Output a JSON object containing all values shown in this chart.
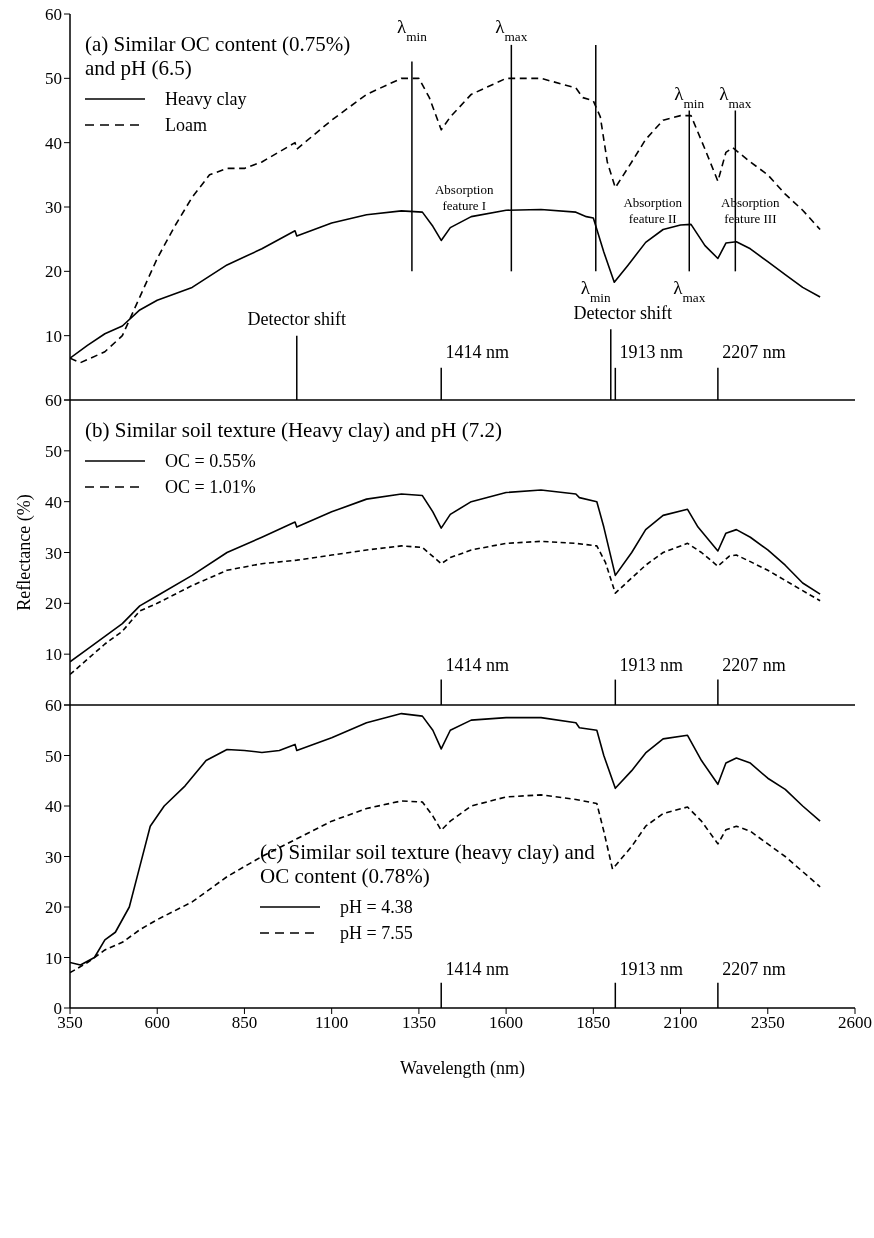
{
  "chart_data": [
    {
      "type": "line",
      "title": "(a) Similar OC content (0.75%) and pH (6.5)",
      "xlim": [
        350,
        2600
      ],
      "xticks": [
        350,
        600,
        850,
        1100,
        1350,
        1600,
        1850,
        2100,
        2350,
        2600
      ],
      "ylim": [
        0,
        60
      ],
      "yticks": [
        {
          "value": 0,
          "label": null
        },
        10,
        20,
        30,
        40,
        50,
        60
      ],
      "tick_labels": "y",
      "legend": "top left",
      "marker": "none",
      "series": [
        {
          "name": "Heavy clay",
          "color": "#000000",
          "line_style": "solid",
          "x": [
            350,
            400,
            450,
            500,
            550,
            600,
            700,
            800,
            900,
            995,
            1000,
            1100,
            1200,
            1300,
            1360,
            1390,
            1414,
            1440,
            1500,
            1600,
            1700,
            1800,
            1830,
            1850,
            1880,
            1910,
            1950,
            2000,
            2050,
            2100,
            2130,
            2170,
            2207,
            2230,
            2260,
            2300,
            2350,
            2400,
            2450,
            2500
          ],
          "values": [
            6.5,
            8.5,
            10.3,
            11.5,
            14,
            15.5,
            17.5,
            21,
            23.5,
            26.3,
            25.5,
            27.5,
            28.8,
            29.4,
            29.2,
            27,
            24.8,
            26.8,
            28.5,
            29.5,
            29.6,
            29.2,
            28.5,
            28.3,
            23,
            18.3,
            21,
            24.5,
            26.5,
            27.2,
            27.3,
            24,
            22,
            24.4,
            24.6,
            23.5,
            21.5,
            19.5,
            17.5,
            16
          ]
        },
        {
          "name": "Loam",
          "color": "#000000",
          "line_style": "dashed",
          "x": [
            350,
            380,
            450,
            500,
            550,
            600,
            650,
            700,
            750,
            800,
            850,
            900,
            995,
            1000,
            1100,
            1200,
            1300,
            1350,
            1380,
            1414,
            1440,
            1500,
            1600,
            1700,
            1800,
            1820,
            1850,
            1870,
            1890,
            1913,
            1960,
            2000,
            2050,
            2100,
            2130,
            2170,
            2207,
            2230,
            2250,
            2300,
            2350,
            2400,
            2450,
            2500
          ],
          "values": [
            6.5,
            5.8,
            7.5,
            10,
            16,
            22,
            27,
            31.5,
            35,
            36,
            36,
            37,
            40,
            39,
            43.5,
            47.5,
            50,
            50,
            47,
            42,
            44,
            47.5,
            50,
            50,
            48.5,
            47,
            46.5,
            44,
            37,
            33,
            37,
            40.5,
            43.5,
            44.2,
            44.2,
            39,
            34,
            38.5,
            39.2,
            37,
            35,
            32,
            29.5,
            26.5
          ]
        }
      ],
      "ref_lines": [
        {
          "axis": "x",
          "value": 1000,
          "label": "Detector shift"
        },
        {
          "axis": "x",
          "value": 1900,
          "label": "Detector shift"
        },
        {
          "axis": "x",
          "value": 1330,
          "label": null
        },
        {
          "axis": "x",
          "value": 1615,
          "label": null
        },
        {
          "axis": "x",
          "value": 1857,
          "label": null
        },
        {
          "axis": "x",
          "value": 2125,
          "label": null
        },
        {
          "axis": "x",
          "value": 2257,
          "label": null
        },
        {
          "axis": "x",
          "value": 1414,
          "label": "1414 nm"
        },
        {
          "axis": "x",
          "value": 1913,
          "label": "1913 nm"
        },
        {
          "axis": "x",
          "value": 2207,
          "label": "2207 nm"
        }
      ],
      "annotations": [
        "λ$_{min}$",
        "λ$_{max}$",
        "λ$_{min}$",
        "λ$_{min}$",
        "λ$_{max}$",
        "λ$_{max}$",
        "Absorption feature I",
        "Absorption feature II",
        "Absorption feature III"
      ]
    },
    {
      "type": "line",
      "title": "(b) Similar soil texture (Heavy clay) and pH (7.2)",
      "ylabel": "Reflectance (%)",
      "xlim": [
        350,
        2600
      ],
      "xticks": [
        350,
        600,
        850,
        1100,
        1350,
        1600,
        1850,
        2100,
        2350,
        2600
      ],
      "ylim": [
        0,
        60
      ],
      "yticks": [
        {
          "value": 0,
          "label": null
        },
        10,
        20,
        30,
        40,
        50,
        60
      ],
      "tick_labels": "y",
      "legend": "top left",
      "marker": "none",
      "series": [
        {
          "name": "OC = 0.55%",
          "color": "#000000",
          "line_style": "solid",
          "x": [
            350,
            400,
            450,
            500,
            550,
            600,
            700,
            800,
            900,
            995,
            1000,
            1100,
            1200,
            1300,
            1360,
            1390,
            1414,
            1440,
            1500,
            1600,
            1700,
            1800,
            1810,
            1860,
            1880,
            1913,
            1960,
            2000,
            2050,
            2120,
            2150,
            2207,
            2230,
            2260,
            2300,
            2350,
            2400,
            2450,
            2500
          ],
          "values": [
            8.5,
            11,
            13.5,
            16,
            19.5,
            21.5,
            25.5,
            30,
            33,
            36,
            35,
            38,
            40.5,
            41.5,
            41.2,
            38,
            34.8,
            37.5,
            40,
            41.8,
            42.3,
            41.5,
            40.8,
            40,
            35,
            25.5,
            30,
            34.5,
            37.3,
            38.5,
            35,
            30.3,
            33.8,
            34.5,
            33,
            30.5,
            27.5,
            24,
            21.8
          ]
        },
        {
          "name": "OC = 1.01%",
          "color": "#000000",
          "line_style": "dashed",
          "x": [
            350,
            400,
            450,
            500,
            550,
            600,
            700,
            800,
            900,
            1000,
            1100,
            1200,
            1300,
            1360,
            1414,
            1440,
            1500,
            1600,
            1700,
            1800,
            1860,
            1885,
            1913,
            1960,
            2000,
            2050,
            2120,
            2160,
            2207,
            2240,
            2260,
            2300,
            2350,
            2400,
            2450,
            2500
          ],
          "values": [
            6,
            9,
            12,
            14.5,
            18.5,
            20,
            23.5,
            26.5,
            27.8,
            28.5,
            29.5,
            30.5,
            31.3,
            31,
            27.8,
            29,
            30.5,
            31.8,
            32.2,
            31.8,
            31.3,
            28,
            22,
            25,
            27.5,
            30,
            31.8,
            30,
            27.3,
            29.3,
            29.5,
            28.2,
            26.5,
            24.5,
            22.5,
            20.5
          ]
        }
      ],
      "ref_lines": [
        {
          "axis": "x",
          "value": 1414,
          "label": "1414 nm"
        },
        {
          "axis": "x",
          "value": 1913,
          "label": "1913 nm"
        },
        {
          "axis": "x",
          "value": 2207,
          "label": "2207 nm"
        }
      ]
    },
    {
      "type": "line",
      "title": "(c) Similar soil texture (heavy clay) and OC content (0.78%)",
      "xlabel": "Wavelength (nm)",
      "xlim": [
        350,
        2600
      ],
      "xticks": [
        350,
        600,
        850,
        1100,
        1350,
        1600,
        1850,
        2100,
        2350,
        2600
      ],
      "ylim": [
        0,
        60
      ],
      "yticks": [
        0,
        10,
        20,
        30,
        40,
        50,
        60
      ],
      "legend": "bottom",
      "marker": "none",
      "series": [
        {
          "name": "pH = 4.38",
          "color": "#000000",
          "line_style": "solid",
          "x": [
            350,
            380,
            420,
            450,
            480,
            520,
            550,
            580,
            620,
            680,
            740,
            800,
            850,
            900,
            950,
            995,
            1000,
            1100,
            1200,
            1300,
            1360,
            1390,
            1414,
            1440,
            1500,
            1600,
            1700,
            1800,
            1810,
            1860,
            1880,
            1913,
            1960,
            2000,
            2050,
            2120,
            2160,
            2207,
            2230,
            2260,
            2300,
            2350,
            2400,
            2450,
            2500
          ],
          "values": [
            9,
            8.5,
            10,
            13.5,
            15,
            20,
            28,
            36,
            40,
            44,
            49,
            51.2,
            51,
            50.6,
            51,
            52.2,
            51,
            53.5,
            56.5,
            58.3,
            57.8,
            55,
            51.3,
            55,
            57,
            57.5,
            57.5,
            56.5,
            55.5,
            55,
            50,
            43.5,
            47,
            50.5,
            53.3,
            54,
            49,
            44.3,
            48.5,
            49.5,
            48.5,
            45.5,
            43.3,
            40,
            37
          ]
        },
        {
          "name": "pH = 7.55",
          "color": "#000000",
          "line_style": "dashed",
          "x": [
            350,
            400,
            450,
            500,
            550,
            600,
            700,
            800,
            900,
            1000,
            1100,
            1200,
            1300,
            1360,
            1390,
            1414,
            1440,
            1500,
            1600,
            1700,
            1800,
            1860,
            1880,
            1905,
            1960,
            2000,
            2050,
            2120,
            2160,
            2207,
            2230,
            2260,
            2300,
            2350,
            2400,
            2450,
            2500
          ],
          "values": [
            7,
            9,
            11.5,
            13,
            15.5,
            17.5,
            21,
            26,
            30,
            33.5,
            37,
            39.5,
            41,
            40.8,
            38,
            35.2,
            37,
            40,
            41.8,
            42.2,
            41.3,
            40.5,
            35,
            27.5,
            32,
            36,
            38.5,
            39.8,
            37,
            32.5,
            35.3,
            36,
            35,
            32.5,
            30,
            27,
            24
          ]
        }
      ],
      "ref_lines": [
        {
          "axis": "x",
          "value": 1414,
          "label": "1414 nm"
        },
        {
          "axis": "x",
          "value": 1913,
          "label": "1913 nm"
        },
        {
          "axis": "x",
          "value": 2207,
          "label": "2207 nm"
        }
      ]
    }
  ]
}
